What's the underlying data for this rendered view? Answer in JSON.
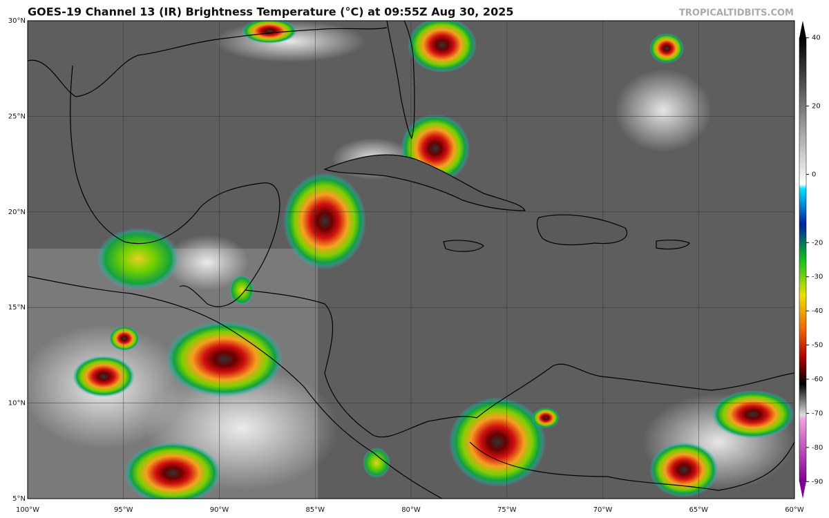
{
  "header": {
    "title": "GOES-19 Channel 13 (IR) Brightness Temperature (°C) at 09:55Z Aug 30, 2025",
    "site": "TROPICALTIDBITS.COM"
  },
  "map": {
    "lat_labels": [
      "30°N",
      "25°N",
      "20°N",
      "15°N",
      "10°N",
      "5°N"
    ],
    "lon_labels": [
      "100°W",
      "95°W",
      "90°W",
      "85°W",
      "80°W",
      "75°W",
      "70°W",
      "65°W",
      "60°W"
    ]
  },
  "colorbar": {
    "lim": [
      -95,
      45
    ],
    "ticks": [
      40,
      20,
      0,
      -20,
      -30,
      -40,
      -50,
      -60,
      -70,
      -80,
      -90
    ]
  }
}
